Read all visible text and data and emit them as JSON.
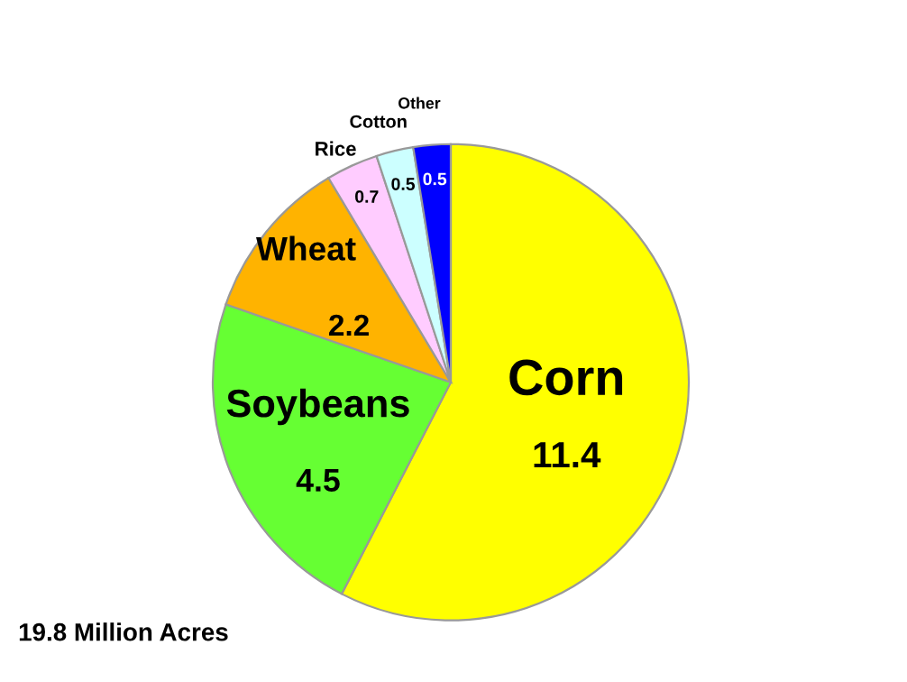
{
  "chart_data": {
    "type": "pie",
    "categories": [
      "Corn",
      "Soybeans",
      "Wheat",
      "Rice",
      "Cotton",
      "Other"
    ],
    "values": [
      11.4,
      4.5,
      2.2,
      0.7,
      0.5,
      0.5
    ],
    "colors": [
      "#ffff00",
      "#66ff33",
      "#ffb300",
      "#ffccff",
      "#ccffff",
      "#0000ff"
    ],
    "data_labels": true,
    "annotations": [
      "19.8 Million Acres"
    ]
  }
}
